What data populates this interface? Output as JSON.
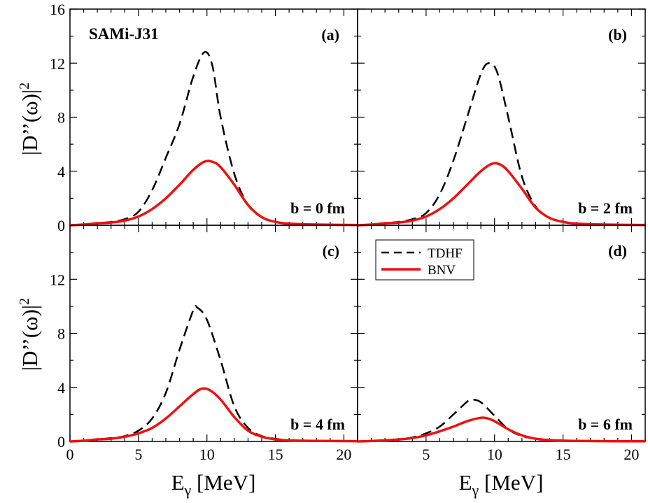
{
  "chart_data": {
    "type": "line",
    "title": "SAMi-J31",
    "xlabel": "E",
    "xlabel_sub": "γ",
    "xlabel_unit": " [MeV]",
    "ylabel": "|D’’(ω)|",
    "ylabel_sup": "2",
    "xlim": [
      0,
      21
    ],
    "ylim": [
      0,
      16
    ],
    "xticks": [
      0,
      5,
      10,
      15,
      20
    ],
    "yticks_top": [
      0,
      4,
      8,
      12,
      16
    ],
    "yticks_bottom": [
      0,
      4,
      8,
      12
    ],
    "legend": {
      "location": "top-left of panel (d)",
      "entries": [
        {
          "name": "TDHF",
          "color": "#000000",
          "style": "dashed"
        },
        {
          "name": "BNV",
          "color": "#ee1111",
          "style": "solid"
        }
      ]
    },
    "panels": [
      {
        "tag": "(a)",
        "b_label": "b = 0 fm",
        "series": [
          {
            "name": "TDHF",
            "x": [
              0,
              1,
              2,
              3,
              4,
              5,
              6,
              7,
              8,
              9,
              9.8,
              10.4,
              11,
              12,
              13,
              14,
              15,
              16,
              18,
              21
            ],
            "values": [
              0,
              0.05,
              0.15,
              0.25,
              0.45,
              1.0,
              2.6,
              5.0,
              7.5,
              11.0,
              12.8,
              11.8,
              8.0,
              3.8,
              1.5,
              0.6,
              0.25,
              0.12,
              0.05,
              0.02
            ]
          },
          {
            "name": "BNV",
            "x": [
              0,
              1,
              2,
              3,
              4,
              5,
              6,
              7,
              8,
              9,
              9.8,
              10.4,
              11,
              12,
              13,
              14,
              15,
              16,
              18,
              21
            ],
            "values": [
              0,
              0.05,
              0.15,
              0.2,
              0.35,
              0.65,
              1.2,
              2.0,
              3.0,
              4.1,
              4.7,
              4.7,
              4.3,
              3.0,
              1.5,
              0.6,
              0.25,
              0.12,
              0.05,
              0.02
            ]
          }
        ]
      },
      {
        "tag": "(b)",
        "b_label": "b = 2 fm",
        "series": [
          {
            "name": "TDHF",
            "x": [
              0,
              1,
              2,
              3,
              4,
              5,
              6,
              7,
              8,
              9,
              9.6,
              10.2,
              11,
              12,
              13,
              14,
              15,
              16,
              18,
              21
            ],
            "values": [
              0,
              0.05,
              0.15,
              0.25,
              0.45,
              0.9,
              2.3,
              4.8,
              8.0,
              11.2,
              12.0,
              11.3,
              8.0,
              3.6,
              1.4,
              0.55,
              0.25,
              0.12,
              0.05,
              0.02
            ]
          },
          {
            "name": "BNV",
            "x": [
              0,
              1,
              2,
              3,
              4,
              5,
              6,
              7,
              8,
              9,
              9.8,
              10.4,
              11,
              12,
              13,
              14,
              15,
              16,
              18,
              21
            ],
            "values": [
              0,
              0.05,
              0.15,
              0.2,
              0.35,
              0.65,
              1.2,
              2.0,
              3.0,
              4.0,
              4.55,
              4.5,
              4.0,
              2.7,
              1.3,
              0.55,
              0.25,
              0.12,
              0.05,
              0.02
            ]
          }
        ]
      },
      {
        "tag": "(c)",
        "b_label": "b = 4 fm",
        "series": [
          {
            "name": "TDHF",
            "x": [
              0,
              1,
              2,
              3,
              4,
              5,
              6,
              7,
              8,
              9,
              9.3,
              10,
              11,
              12,
              13,
              14,
              15,
              16,
              18,
              21
            ],
            "values": [
              0,
              0.05,
              0.15,
              0.25,
              0.4,
              0.8,
              1.7,
              3.6,
              6.8,
              9.7,
              9.9,
              9.0,
              6.0,
              2.6,
              1.0,
              0.4,
              0.2,
              0.1,
              0.04,
              0.02
            ]
          },
          {
            "name": "BNV",
            "x": [
              0,
              1,
              2,
              3,
              4,
              5,
              6,
              7,
              8,
              9,
              9.6,
              10.2,
              11,
              12,
              13,
              14,
              15,
              16,
              18,
              21
            ],
            "values": [
              0,
              0.05,
              0.15,
              0.2,
              0.35,
              0.6,
              1.0,
              1.7,
              2.6,
              3.5,
              3.9,
              3.8,
              3.1,
              1.8,
              0.8,
              0.35,
              0.15,
              0.08,
              0.04,
              0.02
            ]
          }
        ]
      },
      {
        "tag": "(d)",
        "b_label": "b = 6 fm",
        "series": [
          {
            "name": "TDHF",
            "x": [
              0,
              1,
              2,
              3,
              4,
              5,
              6,
              7,
              8,
              8.3,
              9,
              10,
              11,
              12,
              13,
              14,
              15,
              16,
              18,
              21
            ],
            "values": [
              0,
              0.03,
              0.08,
              0.15,
              0.3,
              0.6,
              1.1,
              2.0,
              2.95,
              3.1,
              2.9,
              1.9,
              0.9,
              0.4,
              0.2,
              0.1,
              0.06,
              0.04,
              0.02,
              0.01
            ]
          },
          {
            "name": "BNV",
            "x": [
              0,
              1,
              2,
              3,
              4,
              5,
              6,
              7,
              8,
              9,
              9.5,
              10,
              11,
              12,
              13,
              14,
              15,
              16,
              18,
              21
            ],
            "values": [
              0,
              0.03,
              0.08,
              0.15,
              0.25,
              0.45,
              0.75,
              1.1,
              1.5,
              1.75,
              1.7,
              1.5,
              0.9,
              0.45,
              0.2,
              0.1,
              0.06,
              0.04,
              0.02,
              0.01
            ]
          }
        ]
      }
    ]
  }
}
